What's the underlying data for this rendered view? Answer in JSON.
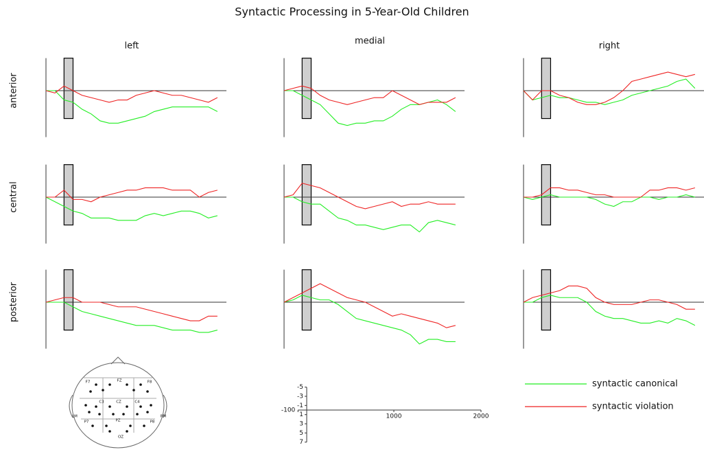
{
  "chart_data": {
    "type": "line",
    "title": "Syntactic Processing in 5-Year-Old Children",
    "columns": [
      "left",
      "medial",
      "right"
    ],
    "rows": [
      "anterior",
      "central",
      "posterior"
    ],
    "series": [
      {
        "name": "syntactic canonical",
        "color": "#22ee22"
      },
      {
        "name": "syntactic violation",
        "color": "#ee2222"
      }
    ],
    "x": [
      -100,
      0,
      100,
      200,
      300,
      400,
      500,
      600,
      700,
      800,
      900,
      1000,
      1100,
      1200,
      1300,
      1400,
      1500,
      1600,
      1700,
      1800
    ],
    "xlim": [
      -100,
      1900
    ],
    "ylim": [
      -7,
      10
    ],
    "window": {
      "x": [
        100,
        200
      ],
      "y": [
        -7,
        6
      ]
    },
    "panels": [
      [
        [
          [
            0,
            0,
            2,
            2.5,
            4,
            5,
            6.5,
            7,
            7,
            6.5,
            6,
            5.5,
            4.5,
            4,
            3.5,
            3.5,
            3.5,
            3.5,
            3.5,
            4.5
          ],
          [
            0,
            0.5,
            -1,
            0,
            1,
            1.5,
            2,
            2.5,
            2,
            2,
            1,
            0.5,
            0,
            0.5,
            1,
            1,
            1.5,
            2,
            2.5,
            1.5
          ]
        ],
        [
          [
            0,
            0,
            1,
            2,
            3,
            5,
            7,
            7.5,
            7,
            7,
            6.5,
            6.5,
            5.5,
            4,
            3,
            3,
            2.5,
            2,
            3,
            4.5
          ],
          [
            0,
            -0.5,
            -1,
            -0.5,
            1,
            2,
            2.5,
            3,
            2.5,
            2,
            1.5,
            1.5,
            0,
            1,
            2,
            3,
            2.5,
            2.5,
            2.5,
            1.5
          ]
        ],
        [
          [
            0,
            2,
            1.5,
            1,
            1.5,
            1.5,
            2,
            2.5,
            2.5,
            3,
            2.5,
            2,
            1,
            0.5,
            0,
            -0.5,
            -1,
            -2,
            -2.5,
            -0.5
          ],
          [
            0,
            2,
            0,
            0,
            1,
            1.5,
            2.5,
            3,
            3,
            2.5,
            1.5,
            0,
            -2,
            -2.5,
            -3,
            -3.5,
            -4,
            -3.5,
            -3,
            -3.5
          ]
        ]
      ],
      [
        [
          [
            0,
            1,
            2,
            3,
            3.5,
            4.5,
            4.5,
            4.5,
            5,
            5,
            5,
            4,
            3.5,
            4,
            3.5,
            3,
            3,
            3.5,
            4.5,
            4
          ],
          [
            0,
            0,
            -1.5,
            0.5,
            0.5,
            1,
            0,
            -0.5,
            -1,
            -1.5,
            -1.5,
            -2,
            -2,
            -2,
            -1.5,
            -1.5,
            -1.5,
            0,
            -1,
            -1.5
          ]
        ],
        [
          [
            0,
            0,
            1,
            1.5,
            1.5,
            3,
            4.5,
            5,
            6,
            6,
            6.5,
            7,
            6.5,
            6,
            6,
            7.5,
            5.5,
            5,
            5.5,
            6
          ],
          [
            0,
            -0.5,
            -3,
            -2.5,
            -2,
            -1,
            0,
            1,
            2,
            2.5,
            2,
            1.5,
            1,
            2,
            1.5,
            1.5,
            1,
            1.5,
            1.5,
            1.5
          ]
        ],
        [
          [
            0,
            0.5,
            0,
            -0.5,
            0,
            0,
            0,
            0,
            0.5,
            1.5,
            2,
            1,
            1,
            0,
            0,
            0.5,
            0,
            0,
            -0.5,
            0
          ],
          [
            0,
            0,
            -0.5,
            -2,
            -2,
            -1.5,
            -1.5,
            -1,
            -0.5,
            -0.5,
            0,
            0,
            0,
            0,
            -1.5,
            -1.5,
            -2,
            -2,
            -1.5,
            -2
          ]
        ]
      ],
      [
        [
          [
            0,
            0,
            0,
            1,
            2,
            2.5,
            3,
            3.5,
            4,
            4.5,
            5,
            5,
            5,
            5.5,
            6,
            6,
            6,
            6.5,
            6.5,
            6
          ],
          [
            0,
            -0.5,
            -1,
            -1,
            0,
            0,
            0,
            0.5,
            1,
            1,
            1,
            1.5,
            2,
            2.5,
            3,
            3.5,
            4,
            4,
            3,
            3
          ]
        ],
        [
          [
            0,
            -0.5,
            -1.5,
            -1,
            -0.5,
            -0.5,
            0.5,
            2,
            3.5,
            4,
            4.5,
            5,
            5.5,
            6,
            7,
            9,
            8,
            8,
            8.5,
            8.5
          ],
          [
            0,
            -1,
            -2,
            -3,
            -4,
            -3,
            -2,
            -1,
            -0.5,
            0,
            1,
            2,
            3,
            2.5,
            3,
            3.5,
            4,
            4.5,
            5.5,
            5
          ]
        ],
        [
          [
            0,
            0,
            -1,
            -1.5,
            -1,
            -1,
            -1,
            0,
            2,
            3,
            3.5,
            3.5,
            4,
            4.5,
            4.5,
            4,
            4.5,
            3.5,
            4,
            5
          ],
          [
            0,
            -1,
            -1.5,
            -2,
            -2.5,
            -3.5,
            -3.5,
            -3,
            -1,
            0,
            0.5,
            0.5,
            0.5,
            0,
            -0.5,
            -0.5,
            0,
            0.5,
            1.5,
            1.5
          ]
        ]
      ]
    ],
    "scale": {
      "xlim": [
        -100,
        2000
      ],
      "ylim": [
        -5,
        7
      ],
      "xticks": [
        -100,
        1000,
        2000
      ],
      "yticks": [
        -5,
        -3,
        -1,
        1,
        3,
        5,
        7
      ]
    },
    "head_map": {
      "labels": [
        "F7",
        "FZ",
        "F8",
        "C3",
        "CZ",
        "C4",
        "LM",
        "RM",
        "P7",
        "PZ",
        "P8",
        "OZ"
      ]
    }
  }
}
